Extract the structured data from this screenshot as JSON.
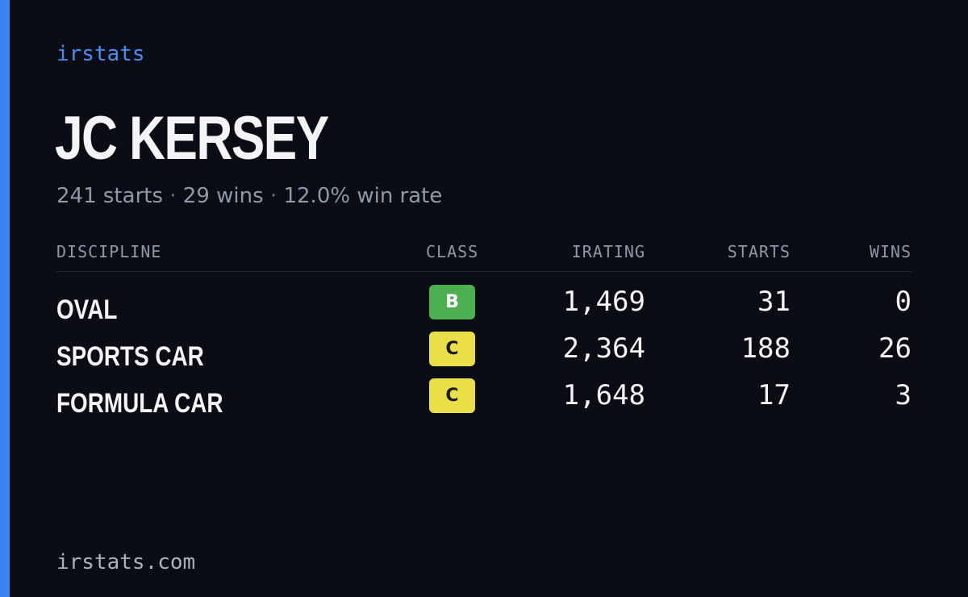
{
  "brand": "irstats",
  "driver": {
    "name": "JC KERSEY"
  },
  "summary": {
    "starts": "241 starts",
    "wins": "29 wins",
    "win_rate": "12.0% win rate",
    "separator": "·"
  },
  "table": {
    "headers": {
      "discipline": "DISCIPLINE",
      "class": "CLASS",
      "irating": "IRATING",
      "starts": "STARTS",
      "wins": "WINS"
    },
    "rows": [
      {
        "discipline": "OVAL",
        "class": "B",
        "irating": "1,469",
        "starts": "31",
        "wins": "0"
      },
      {
        "discipline": "SPORTS CAR",
        "class": "C",
        "irating": "2,364",
        "starts": "188",
        "wins": "26"
      },
      {
        "discipline": "FORMULA CAR",
        "class": "C",
        "irating": "1,648",
        "starts": "17",
        "wins": "3"
      }
    ]
  },
  "footer": "irstats.com",
  "colors": {
    "background": "#0a0d14",
    "accent": "#3b82f6",
    "class_b": "#4caf50",
    "class_c": "#eadf47"
  }
}
